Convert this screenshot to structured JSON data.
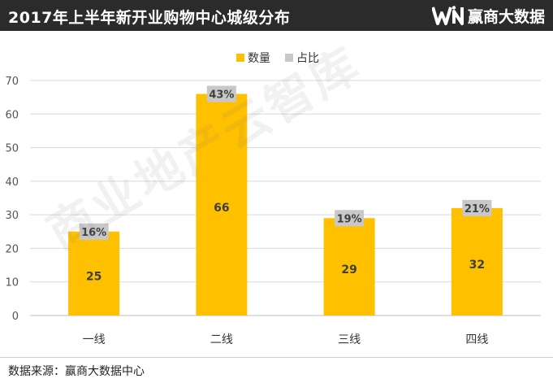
{
  "header": {
    "title": "2017年上半年新开业购物中心城级分布",
    "brand_name": "赢商大数据",
    "brand_logo_text": "WIN"
  },
  "watermark": "商业地产云智库",
  "footer": {
    "source": "数据来源：赢商大数据中心"
  },
  "colors": {
    "header_bg": "#2b2b2b",
    "bar": "#ffc000",
    "label_box": "#cccccc",
    "grid": "#d9d9d9"
  },
  "chart_data": {
    "type": "bar",
    "categories": [
      "一线",
      "二线",
      "三线",
      "四线"
    ],
    "series": [
      {
        "name": "数量",
        "values": [
          25,
          66,
          29,
          32
        ],
        "color": "#ffc000"
      },
      {
        "name": "占比",
        "values": [
          "16%",
          "43%",
          "19%",
          "21%"
        ],
        "color": "#c8c8c8"
      }
    ],
    "yticks": [
      "0",
      "10",
      "20",
      "30",
      "40",
      "50",
      "60",
      "70"
    ],
    "ylim": [
      0,
      70
    ],
    "grid": true,
    "legend_position": "top-center"
  }
}
